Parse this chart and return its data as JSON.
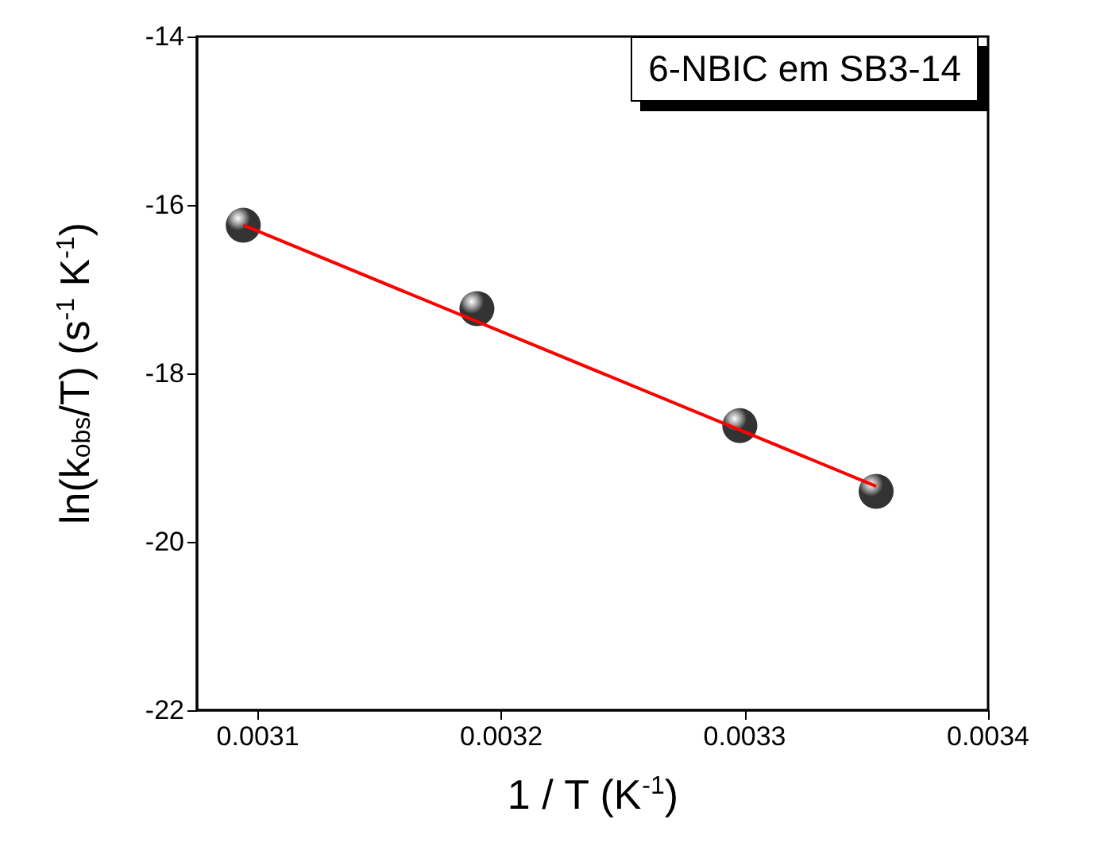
{
  "chart_data": {
    "type": "scatter",
    "xlabel": "1 / T (K$^{-1}$)",
    "ylabel": "ln(k$_{obs}$/T) (s$^{-1}$ K$^{-1}$)",
    "annotations": [
      "6-NBIC em SB3-14"
    ],
    "xlim": [
      0.003075,
      0.0034
    ],
    "xticks": [
      0.0031,
      0.0032,
      0.0033,
      0.0034
    ],
    "ylim": [
      -22,
      -14
    ],
    "yticks": [
      -22,
      -20,
      -18,
      -16,
      -14
    ],
    "grid": false,
    "marker": "circle",
    "series": [
      {
        "color": "#000000",
        "x": [
          0.003094,
          0.00319,
          0.003298,
          0.003354
        ],
        "values": [
          -16.24,
          -17.23,
          -18.62,
          -19.4
        ]
      },
      {
        "type": "line",
        "color": "#ff0000",
        "marker": "none",
        "line_style": "solid",
        "x": [
          0.003094,
          0.003354
        ],
        "values": [
          -16.24,
          -19.34
        ]
      }
    ]
  }
}
